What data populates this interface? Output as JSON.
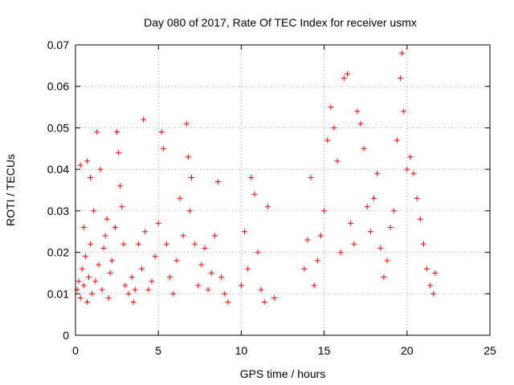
{
  "chart_data": {
    "type": "scatter",
    "title": "Day 080 of 2017, Rate Of TEC Index for receiver usmx",
    "xlabel": "GPS time / hours",
    "ylabel": "ROTI / TECUs",
    "xlim": [
      0,
      25
    ],
    "ylim": [
      0,
      0.07
    ],
    "x_ticks": [
      0,
      5,
      10,
      15,
      20,
      25
    ],
    "y_ticks": [
      0,
      0.01,
      0.02,
      0.03,
      0.04,
      0.05,
      0.06,
      0.07
    ],
    "x_tick_labels": [
      "0",
      "5",
      "10",
      "15",
      "20",
      "25"
    ],
    "y_tick_labels": [
      "0",
      "0.01",
      "0.02",
      "0.03",
      "0.04",
      "0.05",
      "0.06",
      "0.07"
    ],
    "grid": true,
    "marker": "plus",
    "color": "#ff0000",
    "series": [
      {
        "points": [
          [
            0.1,
            0.011
          ],
          [
            0.2,
            0.013
          ],
          [
            0.3,
            0.009
          ],
          [
            0.4,
            0.016
          ],
          [
            0.5,
            0.012
          ],
          [
            0.6,
            0.019
          ],
          [
            0.7,
            0.008
          ],
          [
            0.8,
            0.014
          ],
          [
            0.9,
            0.022
          ],
          [
            1.0,
            0.01
          ],
          [
            0.3,
            0.041
          ],
          [
            0.5,
            0.026
          ],
          [
            0.7,
            0.042
          ],
          [
            0.9,
            0.038
          ],
          [
            1.1,
            0.03
          ],
          [
            1.3,
            0.049
          ],
          [
            1.5,
            0.04
          ],
          [
            1.7,
            0.021
          ],
          [
            1.9,
            0.028
          ],
          [
            2.1,
            0.015
          ],
          [
            1.2,
            0.013
          ],
          [
            1.4,
            0.017
          ],
          [
            1.6,
            0.011
          ],
          [
            1.8,
            0.024
          ],
          [
            2.0,
            0.009
          ],
          [
            2.2,
            0.018
          ],
          [
            2.4,
            0.026
          ],
          [
            2.5,
            0.049
          ],
          [
            2.6,
            0.044
          ],
          [
            2.7,
            0.036
          ],
          [
            2.8,
            0.031
          ],
          [
            2.9,
            0.022
          ],
          [
            3.0,
            0.012
          ],
          [
            3.2,
            0.01
          ],
          [
            3.4,
            0.014
          ],
          [
            3.6,
            0.011
          ],
          [
            3.8,
            0.022
          ],
          [
            4.0,
            0.016
          ],
          [
            4.1,
            0.052
          ],
          [
            4.2,
            0.025
          ],
          [
            4.4,
            0.011
          ],
          [
            4.6,
            0.013
          ],
          [
            4.8,
            0.019
          ],
          [
            5.0,
            0.027
          ],
          [
            5.2,
            0.049
          ],
          [
            5.3,
            0.045
          ],
          [
            5.5,
            0.022
          ],
          [
            5.7,
            0.014
          ],
          [
            5.9,
            0.01
          ],
          [
            6.1,
            0.018
          ],
          [
            6.3,
            0.033
          ],
          [
            6.5,
            0.024
          ],
          [
            6.7,
            0.051
          ],
          [
            6.8,
            0.043
          ],
          [
            6.9,
            0.03
          ],
          [
            7.0,
            0.038
          ],
          [
            7.2,
            0.022
          ],
          [
            7.4,
            0.012
          ],
          [
            7.6,
            0.017
          ],
          [
            7.8,
            0.021
          ],
          [
            8.0,
            0.011
          ],
          [
            8.2,
            0.015
          ],
          [
            8.4,
            0.024
          ],
          [
            8.6,
            0.037
          ],
          [
            8.8,
            0.014
          ],
          [
            9.0,
            0.01
          ],
          [
            9.2,
            0.008
          ],
          [
            10.0,
            0.012
          ],
          [
            10.2,
            0.025
          ],
          [
            10.4,
            0.016
          ],
          [
            10.6,
            0.038
          ],
          [
            10.8,
            0.034
          ],
          [
            11.0,
            0.02
          ],
          [
            11.2,
            0.011
          ],
          [
            11.4,
            0.008
          ],
          [
            11.6,
            0.031
          ],
          [
            13.8,
            0.016
          ],
          [
            14.0,
            0.023
          ],
          [
            14.2,
            0.038
          ],
          [
            14.4,
            0.012
          ],
          [
            14.6,
            0.018
          ],
          [
            14.8,
            0.024
          ],
          [
            15.0,
            0.03
          ],
          [
            15.2,
            0.047
          ],
          [
            15.4,
            0.055
          ],
          [
            15.6,
            0.05
          ],
          [
            15.8,
            0.042
          ],
          [
            16.0,
            0.02
          ],
          [
            16.2,
            0.062
          ],
          [
            16.4,
            0.063
          ],
          [
            16.6,
            0.027
          ],
          [
            16.8,
            0.022
          ],
          [
            17.0,
            0.054
          ],
          [
            17.2,
            0.051
          ],
          [
            17.4,
            0.045
          ],
          [
            17.6,
            0.031
          ],
          [
            17.8,
            0.025
          ],
          [
            18.0,
            0.033
          ],
          [
            18.2,
            0.039
          ],
          [
            18.4,
            0.021
          ],
          [
            18.6,
            0.014
          ],
          [
            18.8,
            0.018
          ],
          [
            19.0,
            0.026
          ],
          [
            19.2,
            0.03
          ],
          [
            19.4,
            0.047
          ],
          [
            19.6,
            0.062
          ],
          [
            19.7,
            0.068
          ],
          [
            19.8,
            0.054
          ],
          [
            20.0,
            0.04
          ],
          [
            20.2,
            0.043
          ],
          [
            20.4,
            0.039
          ],
          [
            20.6,
            0.033
          ],
          [
            20.8,
            0.028
          ],
          [
            21.0,
            0.022
          ],
          [
            21.2,
            0.016
          ],
          [
            21.4,
            0.012
          ],
          [
            21.6,
            0.01
          ],
          [
            21.7,
            0.015
          ],
          [
            12.0,
            0.009
          ],
          [
            3.5,
            0.008
          ]
        ]
      }
    ]
  }
}
